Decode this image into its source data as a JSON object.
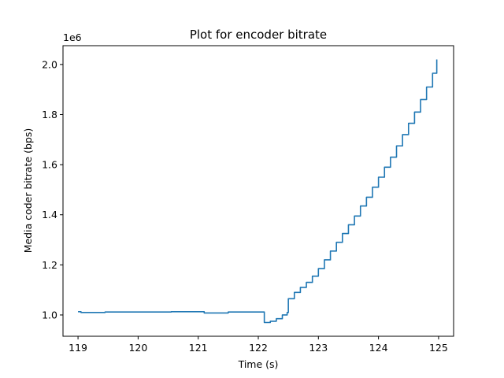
{
  "chart_data": {
    "type": "line",
    "title": "Plot for encoder bitrate",
    "xlabel": "Time (s)",
    "ylabel": "Media coder bitrate (bps)",
    "y_offset_label": "1e6",
    "xlim": [
      118.75,
      125.25
    ],
    "ylim": [
      0.915,
      2.075
    ],
    "x_ticks": [
      119,
      120,
      121,
      122,
      123,
      124,
      125
    ],
    "x_tick_labels": [
      "119",
      "120",
      "121",
      "122",
      "123",
      "124",
      "125"
    ],
    "y_ticks": [
      1.0,
      1.2,
      1.4,
      1.6,
      1.8,
      2.0
    ],
    "y_tick_labels": [
      "1.0",
      "1.2",
      "1.4",
      "1.6",
      "1.8",
      "2.0"
    ],
    "y_unit_multiplier": 1000000,
    "grid": false,
    "line_color": "#1f77b4",
    "series": [
      {
        "x": [
          119.0,
          119.05,
          119.45,
          119.8,
          120.15,
          120.55,
          121.1,
          121.5,
          121.85,
          122.08,
          122.1,
          122.2,
          122.3,
          122.4,
          122.48,
          122.5,
          122.6,
          122.7,
          122.8,
          122.9,
          123.0,
          123.1,
          123.2,
          123.3,
          123.4,
          123.5,
          123.6,
          123.7,
          123.8,
          123.9,
          124.0,
          124.1,
          124.2,
          124.3,
          124.4,
          124.5,
          124.6,
          124.7,
          124.8,
          124.9,
          124.97
        ],
        "y": [
          1.013,
          1.01,
          1.012,
          1.012,
          1.012,
          1.013,
          1.008,
          1.012,
          1.012,
          1.012,
          0.97,
          0.975,
          0.985,
          1.0,
          1.01,
          1.065,
          1.09,
          1.11,
          1.13,
          1.155,
          1.185,
          1.22,
          1.255,
          1.29,
          1.325,
          1.36,
          1.395,
          1.435,
          1.47,
          1.51,
          1.55,
          1.59,
          1.63,
          1.675,
          1.72,
          1.765,
          1.81,
          1.86,
          1.91,
          1.965,
          2.02
        ]
      }
    ]
  }
}
